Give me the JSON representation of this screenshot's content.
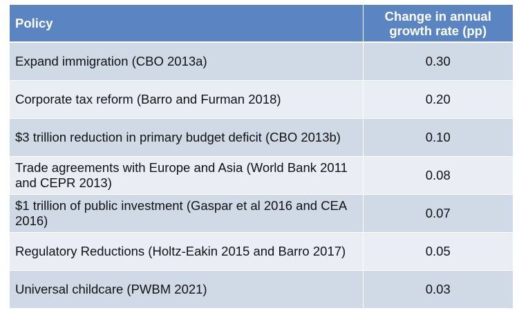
{
  "table": {
    "headers": {
      "policy": "Policy",
      "change_line1": "Change in annual",
      "change_line2": "growth rate (pp)"
    },
    "rows": [
      {
        "policy": "Expand immigration (CBO 2013a)",
        "value": "0.30"
      },
      {
        "policy": "Corporate tax reform (Barro and Furman 2018)",
        "value": "0.20"
      },
      {
        "policy": "$3 trillion reduction in primary budget deficit (CBO 2013b)",
        "value": "0.10"
      },
      {
        "policy": "Trade agreements with Europe and Asia (World Bank 2011 and CEPR 2013)",
        "value": "0.08"
      },
      {
        "policy": "$1 trillion of public investment (Gaspar et al 2016 and CEA 2016)",
        "value": "0.07"
      },
      {
        "policy": "Regulatory Reductions (Holtz-Eakin 2015 and Barro 2017)",
        "value": "0.05"
      },
      {
        "policy": "Universal childcare (PWBM 2021)",
        "value": "0.03"
      }
    ]
  },
  "colors": {
    "header_bg": "#5b84c3",
    "row_odd_bg": "#d0dae6",
    "row_even_bg": "#e9eef4"
  }
}
